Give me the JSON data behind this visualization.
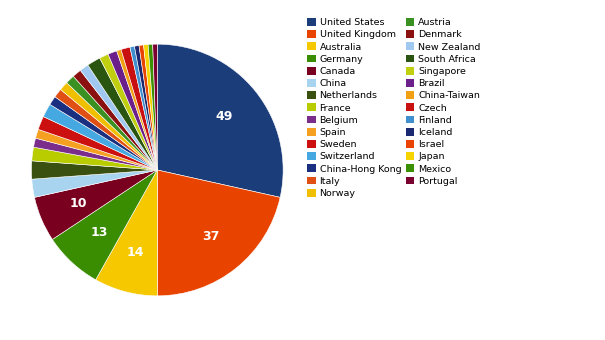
{
  "labels": [
    "United States",
    "United Kingdom",
    "Australia",
    "Germany",
    "Canada",
    "China",
    "Netherlands",
    "France",
    "Belgium",
    "Spain",
    "Sweden",
    "Switzerland",
    "China-Hong Kong",
    "Italy",
    "Norway",
    "Austria",
    "Denmark",
    "New Zealand",
    "South Africa",
    "Singapore",
    "Brazil",
    "China-Taiwan",
    "Czech",
    "Finland",
    "Iceland",
    "Israel",
    "Japan",
    "Mexico",
    "Portugal"
  ],
  "values": [
    49,
    37,
    14,
    13,
    10,
    4,
    4,
    3,
    2,
    2,
    3,
    3,
    2,
    2,
    2,
    2,
    2,
    2,
    3,
    2,
    2,
    1,
    2,
    1,
    1,
    1,
    1,
    1,
    1
  ],
  "colors": [
    "#1b3d7a",
    "#e84400",
    "#f5c800",
    "#3a8c00",
    "#7a0020",
    "#a8d4f0",
    "#3a5010",
    "#b8cc00",
    "#7b2d8b",
    "#f5a020",
    "#cc1010",
    "#45a8e0",
    "#1a2f80",
    "#e05015",
    "#f0c000",
    "#3a9020",
    "#8b1010",
    "#a0c8f0",
    "#2a5510",
    "#c0d010",
    "#6a1f8a",
    "#f0a010",
    "#c81010",
    "#4090d0",
    "#1a2870",
    "#e84400",
    "#f5d400",
    "#3a9000",
    "#7a0030"
  ],
  "figsize": [
    6.05,
    3.4
  ],
  "dpi": 100
}
